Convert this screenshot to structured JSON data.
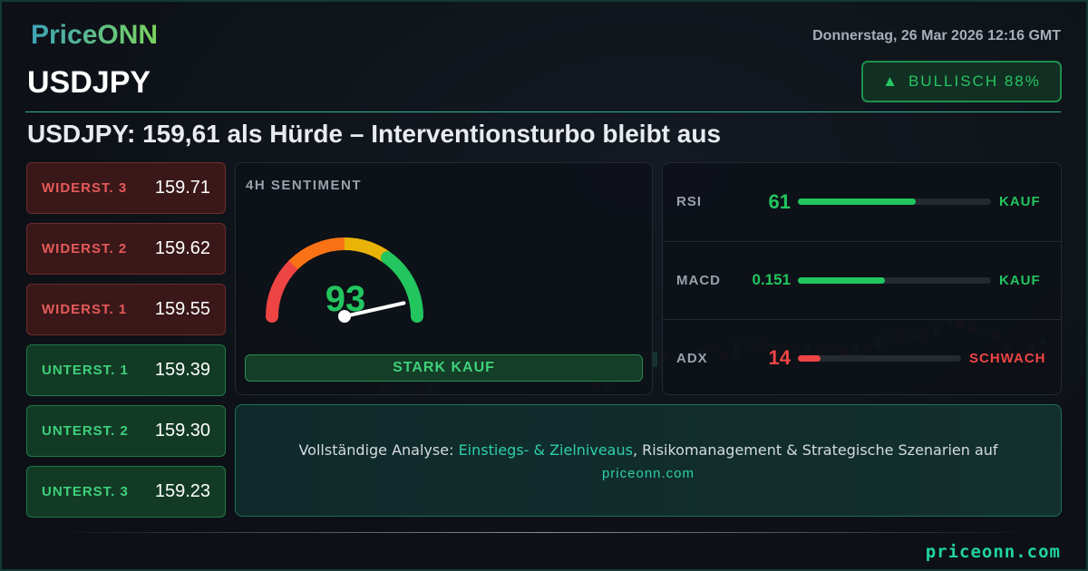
{
  "brand": {
    "logo": "PriceONN",
    "footer_url": "priceonn.com"
  },
  "header": {
    "date": "Donnerstag, 26 Mar 2026 12:16 GMT",
    "pair": "USDJPY",
    "sentiment_badge": {
      "icon": "triangle-up-icon",
      "label": "BULLISCH 88%"
    },
    "headline": "USDJPY: 159,61 als Hürde – Interventionsturbo bleibt aus"
  },
  "levels": [
    {
      "label": "WIDERST. 3",
      "value": "159.71",
      "type": "resistance"
    },
    {
      "label": "WIDERST. 2",
      "value": "159.62",
      "type": "resistance"
    },
    {
      "label": "WIDERST. 1",
      "value": "159.55",
      "type": "resistance"
    },
    {
      "label": "UNTERST. 1",
      "value": "159.39",
      "type": "support"
    },
    {
      "label": "UNTERST. 2",
      "value": "159.30",
      "type": "support"
    },
    {
      "label": "UNTERST. 3",
      "value": "159.23",
      "type": "support"
    }
  ],
  "sentiment": {
    "title": "4H SENTIMENT",
    "value": "93",
    "gauge_value": 93,
    "gauge_range": [
      0,
      100
    ],
    "signal": "STARK KAUF"
  },
  "indicators": [
    {
      "name": "RSI",
      "value": "61",
      "fill_pct": 61,
      "signal": "KAUF",
      "color": "#22c55e"
    },
    {
      "name": "MACD",
      "value": "0.151",
      "fill_pct": 45,
      "signal": "KAUF",
      "color": "#22c55e"
    },
    {
      "name": "ADX",
      "value": "14",
      "fill_pct": 14,
      "signal": "SCHWACH",
      "color": "#ef4444"
    }
  ],
  "cta": {
    "prefix": "Vollständige Analyse: ",
    "highlight": "Einstiegs- & Zielniveaus",
    "suffix": ", Risikomanagement & Strategische Szenarien auf",
    "url": "priceonn.com"
  },
  "colors": {
    "accent": "#2fcfa5",
    "bull": "#22c55e",
    "bear": "#ef4444"
  }
}
